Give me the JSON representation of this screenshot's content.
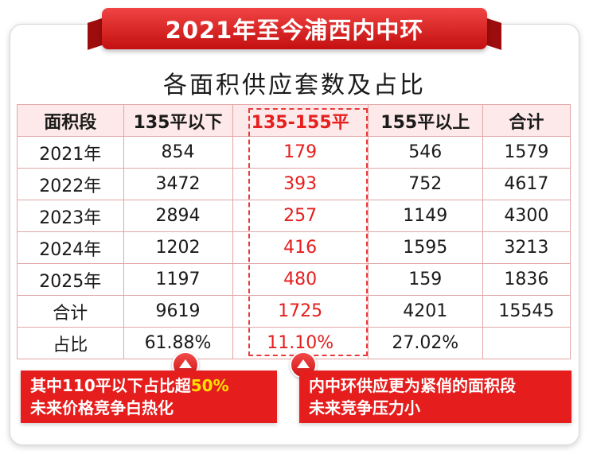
{
  "banner": {
    "title": "2021年至今浦西内中环"
  },
  "subtitle": "各面积供应套数及占比",
  "table": {
    "headers": [
      "面积段",
      "135平以下",
      "135-155平",
      "155平以上",
      "合计"
    ],
    "rows": [
      [
        "2021年",
        "854",
        "179",
        "546",
        "1579"
      ],
      [
        "2022年",
        "3472",
        "393",
        "752",
        "4617"
      ],
      [
        "2023年",
        "2894",
        "257",
        "1149",
        "4300"
      ],
      [
        "2024年",
        "1202",
        "416",
        "1595",
        "3213"
      ],
      [
        "2025年",
        "1197",
        "480",
        "159",
        "1836"
      ],
      [
        "合计",
        "9619",
        "1725",
        "4201",
        "15545"
      ],
      [
        "占比",
        "61.88%",
        "11.10%",
        "27.02%",
        ""
      ]
    ],
    "highlight_color": "#e61e1e"
  },
  "callouts": {
    "left": {
      "line1_prefix": "其中110平以下占比超",
      "line1_highlight": "50%",
      "line2": "未来价格竞争白热化"
    },
    "right": {
      "line1": "内中环供应更为紧俏的面积段",
      "line2": "未来竞争压力小"
    }
  },
  "colors": {
    "accent_red": "#e51d1d",
    "highlight_yellow": "#ffe100",
    "header_bg": "#fde9e9"
  },
  "icons": {
    "markers": "triangle-up-icon"
  }
}
